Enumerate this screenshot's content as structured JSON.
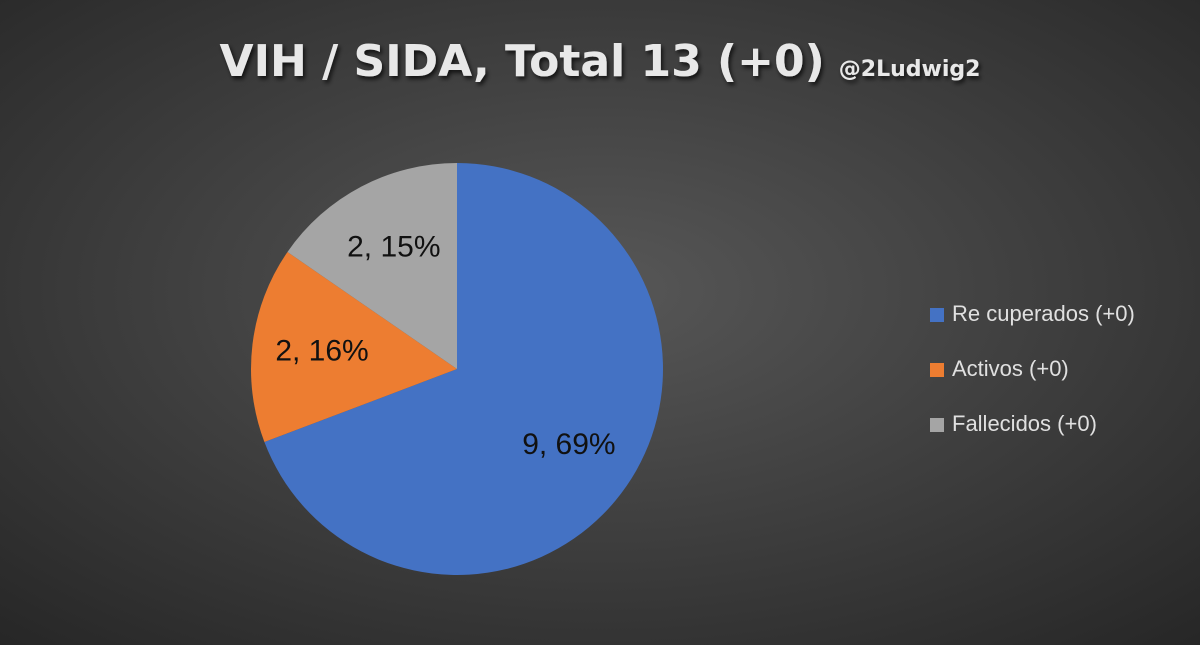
{
  "chart_data": {
    "type": "pie",
    "title": "VIH / SIDA, Total 13 (+0)",
    "subtitle": "@2Ludwig2",
    "categories": [
      "Re cuperados (+0)",
      "Activos (+0)",
      "Fallecidos (+0)"
    ],
    "values": [
      9,
      2,
      2
    ],
    "value_labels": [
      "9, 69%",
      "2, 16%",
      "2, 15%"
    ],
    "colors": [
      "#4472c4",
      "#ed7d31",
      "#a5a5a5"
    ],
    "legend": "right"
  }
}
